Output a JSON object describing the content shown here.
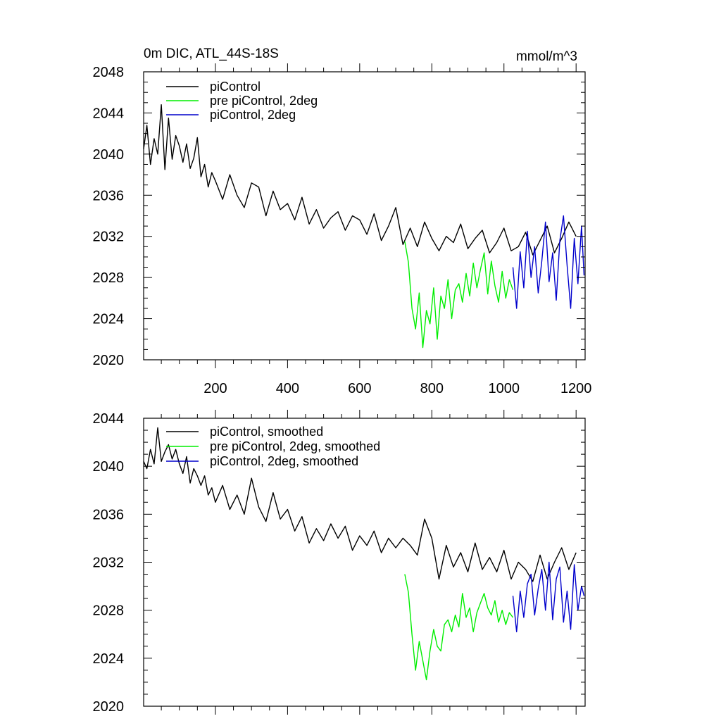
{
  "colors": {
    "piControl": "#000000",
    "pre_piControl_2deg": "#00ee00",
    "piControl_2deg": "#0000cc"
  },
  "chart_data": [
    {
      "type": "line",
      "title": "0m DIC, ATL_44S-18S",
      "units": "mmol/m^3",
      "xlim": [
        1,
        1225
      ],
      "ylim": [
        2020,
        2048
      ],
      "xticks": [
        200,
        400,
        600,
        800,
        1000,
        1200
      ],
      "xtick_labels": [
        "200",
        "400",
        "600",
        "800",
        "1000",
        "1200"
      ],
      "yticks": [
        2020,
        2024,
        2028,
        2032,
        2036,
        2040,
        2044,
        2048
      ],
      "ytick_labels": [
        "2020",
        "2024",
        "2028",
        "2032",
        "2036",
        "2040",
        "2044",
        "2048"
      ],
      "series": [
        {
          "name": "piControl",
          "color": "#000000",
          "x": [
            1,
            10,
            20,
            30,
            40,
            50,
            60,
            70,
            80,
            90,
            100,
            110,
            120,
            130,
            140,
            150,
            160,
            170,
            180,
            190,
            200,
            220,
            240,
            260,
            280,
            300,
            320,
            340,
            360,
            380,
            400,
            420,
            440,
            460,
            480,
            500,
            520,
            540,
            560,
            580,
            600,
            620,
            640,
            660,
            680,
            700,
            720,
            740,
            760,
            780,
            800,
            820,
            840,
            860,
            880,
            900,
            920,
            940,
            960,
            980,
            1000,
            1020,
            1040,
            1060,
            1080,
            1100,
            1120,
            1140,
            1160,
            1180,
            1200
          ],
          "values": [
            2040.5,
            2042.8,
            2039.0,
            2041.5,
            2040.0,
            2044.8,
            2038.5,
            2043.5,
            2039.5,
            2041.8,
            2040.8,
            2039.2,
            2041.0,
            2038.6,
            2039.6,
            2041.6,
            2037.8,
            2039.0,
            2036.8,
            2038.2,
            2037.4,
            2035.6,
            2038.0,
            2036.0,
            2034.8,
            2037.2,
            2036.8,
            2034.0,
            2036.4,
            2034.6,
            2035.2,
            2033.6,
            2035.8,
            2033.2,
            2034.6,
            2032.8,
            2033.8,
            2034.4,
            2032.6,
            2034.0,
            2033.6,
            2032.2,
            2034.2,
            2031.6,
            2033.0,
            2034.8,
            2031.2,
            2032.8,
            2031.0,
            2033.4,
            2031.8,
            2030.6,
            2032.0,
            2031.4,
            2033.2,
            2030.8,
            2031.8,
            2032.6,
            2030.4,
            2031.4,
            2032.8,
            2030.6,
            2031.0,
            2032.4,
            2030.2,
            2031.6,
            2033.0,
            2030.4,
            2031.8,
            2033.4,
            2032.0
          ]
        },
        {
          "name": "pre piControl, 2deg",
          "color": "#00ee00",
          "x": [
            725,
            735,
            745,
            755,
            765,
            775,
            785,
            795,
            805,
            815,
            825,
            835,
            845,
            855,
            865,
            875,
            885,
            895,
            905,
            915,
            925,
            935,
            945,
            955,
            965,
            975,
            985,
            995,
            1005,
            1015,
            1025
          ],
          "values": [
            2031.5,
            2029.5,
            2025.0,
            2023.0,
            2026.5,
            2021.2,
            2024.8,
            2023.5,
            2027.0,
            2022.0,
            2026.2,
            2025.0,
            2027.8,
            2024.0,
            2026.8,
            2027.4,
            2025.6,
            2028.4,
            2026.2,
            2029.4,
            2027.0,
            2028.8,
            2030.4,
            2026.4,
            2029.6,
            2027.2,
            2025.6,
            2028.6,
            2026.0,
            2027.8,
            2026.8
          ]
        },
        {
          "name": "piControl, 2deg",
          "color": "#0000cc",
          "x": [
            1025,
            1035,
            1045,
            1055,
            1065,
            1075,
            1085,
            1095,
            1105,
            1115,
            1125,
            1135,
            1145,
            1155,
            1165,
            1175,
            1185,
            1195,
            1205,
            1215,
            1222
          ],
          "values": [
            2029.0,
            2025.0,
            2030.5,
            2027.0,
            2032.5,
            2028.0,
            2031.0,
            2026.5,
            2029.6,
            2033.4,
            2027.6,
            2030.4,
            2025.8,
            2031.6,
            2034.0,
            2029.2,
            2025.0,
            2031.8,
            2027.4,
            2033.0,
            2028.2
          ]
        }
      ]
    },
    {
      "type": "line",
      "xlim": [
        1,
        1225
      ],
      "ylim": [
        2020,
        2044
      ],
      "xticks": [
        200,
        400,
        600,
        800,
        1000,
        1200
      ],
      "yticks": [
        2020,
        2024,
        2028,
        2032,
        2036,
        2040,
        2044
      ],
      "ytick_labels": [
        "2020",
        "2024",
        "2028",
        "2032",
        "2036",
        "2040",
        "2044"
      ],
      "series": [
        {
          "name": "piControl, smoothed",
          "color": "#000000",
          "x": [
            1,
            10,
            20,
            30,
            40,
            50,
            60,
            70,
            80,
            90,
            100,
            110,
            120,
            130,
            140,
            150,
            160,
            170,
            180,
            190,
            200,
            220,
            240,
            260,
            280,
            300,
            320,
            340,
            360,
            380,
            400,
            420,
            440,
            460,
            480,
            500,
            520,
            540,
            560,
            580,
            600,
            620,
            640,
            660,
            680,
            700,
            720,
            740,
            760,
            780,
            800,
            820,
            840,
            860,
            880,
            900,
            920,
            940,
            960,
            980,
            1000,
            1020,
            1040,
            1060,
            1080,
            1100,
            1120,
            1140,
            1160,
            1180,
            1200
          ],
          "values": [
            2040.4,
            2039.8,
            2041.4,
            2040.2,
            2043.2,
            2040.4,
            2041.2,
            2041.8,
            2040.6,
            2041.4,
            2040.2,
            2039.4,
            2040.8,
            2038.6,
            2039.8,
            2039.2,
            2038.4,
            2039.2,
            2037.6,
            2038.2,
            2037.0,
            2038.4,
            2036.4,
            2037.6,
            2036.0,
            2039.0,
            2036.6,
            2035.4,
            2037.8,
            2035.6,
            2036.4,
            2034.6,
            2035.8,
            2033.6,
            2034.8,
            2033.8,
            2035.2,
            2034.0,
            2035.0,
            2033.0,
            2034.2,
            2033.4,
            2034.6,
            2032.8,
            2034.0,
            2033.2,
            2034.0,
            2033.4,
            2032.6,
            2035.6,
            2034.0,
            2030.6,
            2033.4,
            2031.6,
            2032.8,
            2031.2,
            2033.6,
            2031.4,
            2032.4,
            2031.2,
            2033.0,
            2030.6,
            2032.0,
            2031.4,
            2030.4,
            2032.6,
            2030.6,
            2032.0,
            2033.2,
            2031.4,
            2032.8
          ]
        },
        {
          "name": "pre piControl, 2deg, smoothed",
          "color": "#00ee00",
          "x": [
            725,
            735,
            745,
            755,
            765,
            775,
            785,
            795,
            805,
            815,
            825,
            835,
            845,
            855,
            865,
            875,
            885,
            895,
            905,
            915,
            925,
            935,
            945,
            955,
            965,
            975,
            985,
            995,
            1005,
            1015,
            1025
          ],
          "values": [
            2031.0,
            2029.5,
            2026.0,
            2023.0,
            2025.4,
            2023.8,
            2022.2,
            2024.6,
            2026.4,
            2025.0,
            2024.6,
            2026.8,
            2027.2,
            2026.2,
            2027.6,
            2026.6,
            2029.4,
            2027.4,
            2028.2,
            2026.2,
            2027.8,
            2028.6,
            2029.4,
            2028.2,
            2027.6,
            2028.8,
            2027.0,
            2028.0,
            2026.8,
            2027.8,
            2027.4
          ]
        },
        {
          "name": "piControl, 2deg, smoothed",
          "color": "#0000cc",
          "x": [
            1025,
            1035,
            1045,
            1055,
            1065,
            1075,
            1085,
            1095,
            1105,
            1115,
            1125,
            1135,
            1145,
            1155,
            1165,
            1175,
            1185,
            1195,
            1205,
            1215,
            1222
          ],
          "values": [
            2029.2,
            2026.2,
            2029.6,
            2027.4,
            2030.2,
            2031.0,
            2027.6,
            2029.8,
            2031.4,
            2028.0,
            2032.0,
            2027.2,
            2030.6,
            2031.6,
            2027.0,
            2029.6,
            2026.4,
            2031.8,
            2028.0,
            2030.0,
            2029.2
          ]
        }
      ]
    }
  ]
}
